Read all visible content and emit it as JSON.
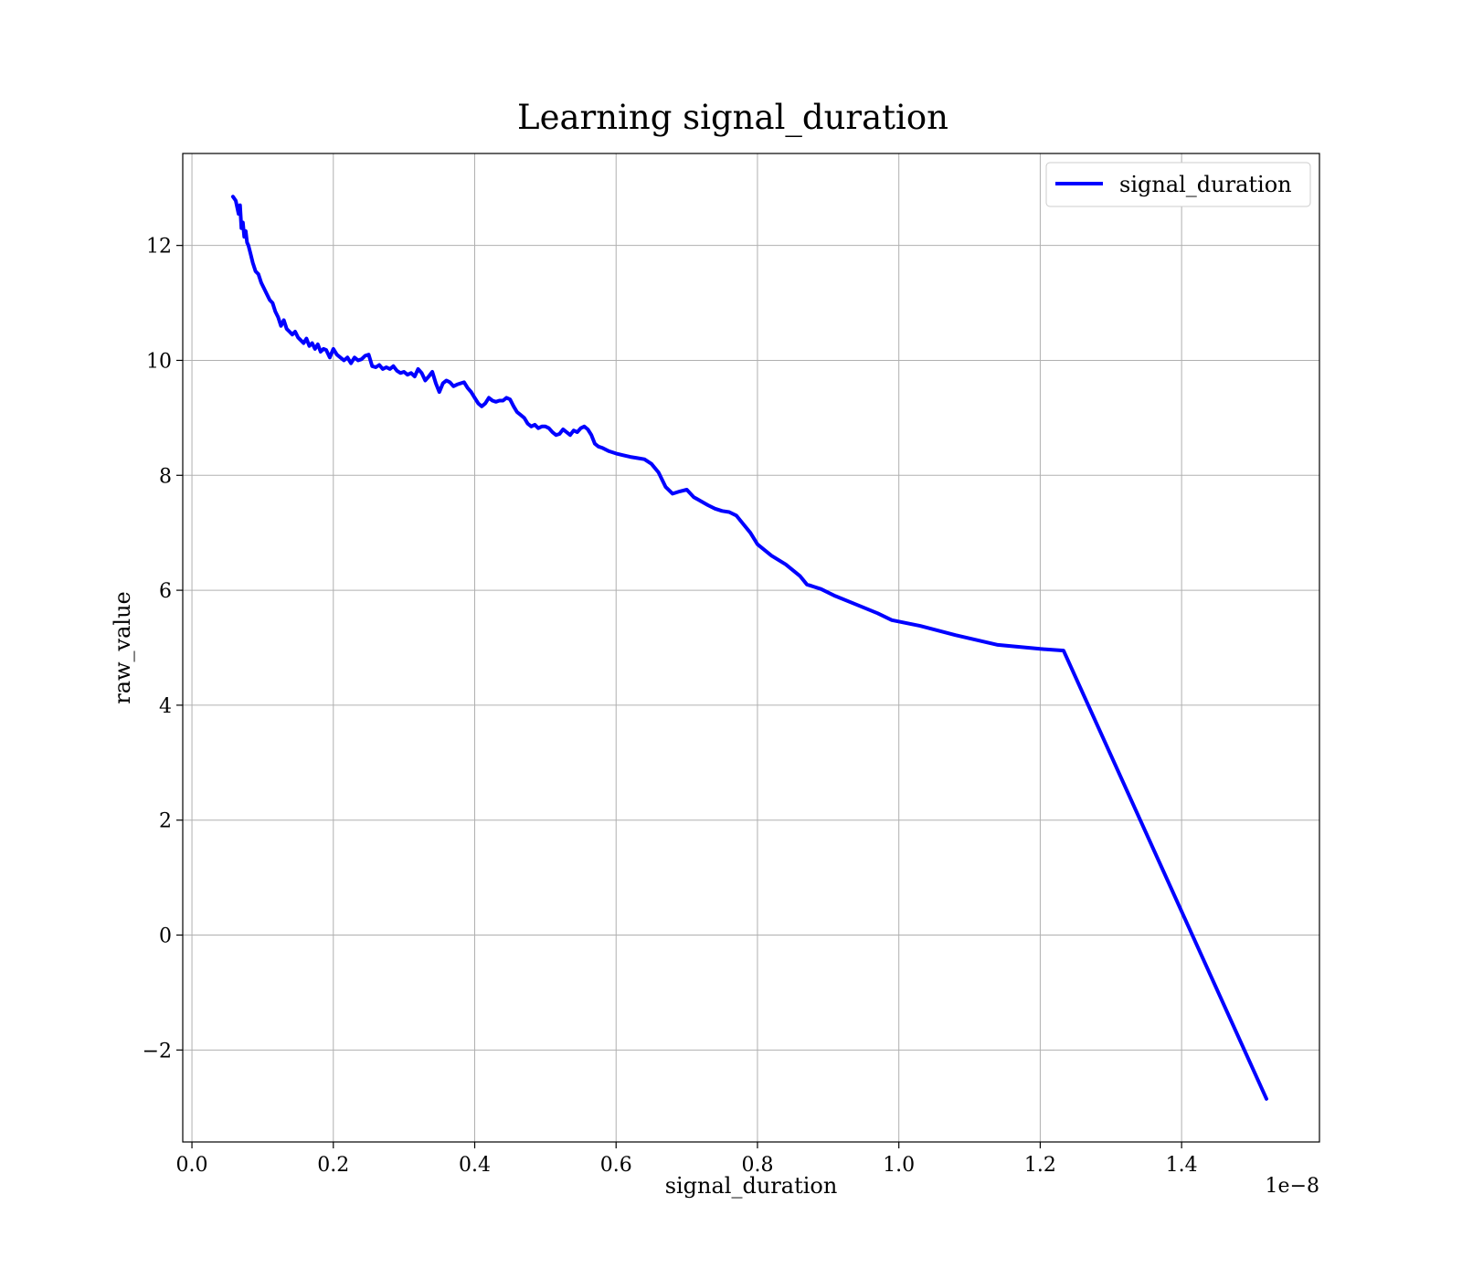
{
  "chart_data": {
    "type": "line",
    "title": "Learning signal_duration",
    "xlabel": "signal_duration",
    "ylabel": "raw_value",
    "x_offset_label": "1e−8",
    "xlim": [
      -0.013,
      1.595
    ],
    "ylim": [
      -3.6,
      13.6
    ],
    "x_ticks": [
      0.0,
      0.2,
      0.4,
      0.6,
      0.8,
      1.0,
      1.2,
      1.4
    ],
    "x_tick_labels": [
      "0.0",
      "0.2",
      "0.4",
      "0.6",
      "0.8",
      "1.0",
      "1.2",
      "1.4"
    ],
    "y_ticks": [
      -2,
      0,
      2,
      4,
      6,
      8,
      10,
      12
    ],
    "y_tick_labels": [
      "−2",
      "0",
      "2",
      "4",
      "6",
      "8",
      "10",
      "12"
    ],
    "grid": true,
    "legend_position": "top-right",
    "series": [
      {
        "name": "signal_duration",
        "color": "#0000ff",
        "x": [
          0.058,
          0.062,
          0.066,
          0.068,
          0.07,
          0.072,
          0.074,
          0.076,
          0.078,
          0.08,
          0.083,
          0.086,
          0.09,
          0.094,
          0.098,
          0.102,
          0.106,
          0.11,
          0.114,
          0.118,
          0.122,
          0.126,
          0.13,
          0.134,
          0.138,
          0.142,
          0.146,
          0.15,
          0.154,
          0.158,
          0.162,
          0.166,
          0.17,
          0.174,
          0.178,
          0.182,
          0.186,
          0.19,
          0.195,
          0.2,
          0.205,
          0.21,
          0.215,
          0.22,
          0.225,
          0.23,
          0.235,
          0.24,
          0.245,
          0.25,
          0.255,
          0.26,
          0.265,
          0.27,
          0.275,
          0.28,
          0.285,
          0.29,
          0.295,
          0.3,
          0.305,
          0.31,
          0.315,
          0.32,
          0.325,
          0.33,
          0.335,
          0.34,
          0.345,
          0.35,
          0.355,
          0.36,
          0.365,
          0.37,
          0.375,
          0.38,
          0.385,
          0.39,
          0.395,
          0.4,
          0.405,
          0.41,
          0.415,
          0.42,
          0.425,
          0.43,
          0.435,
          0.44,
          0.445,
          0.45,
          0.455,
          0.46,
          0.465,
          0.47,
          0.475,
          0.48,
          0.485,
          0.49,
          0.495,
          0.5,
          0.505,
          0.51,
          0.515,
          0.52,
          0.525,
          0.53,
          0.535,
          0.54,
          0.545,
          0.55,
          0.555,
          0.56,
          0.565,
          0.57,
          0.575,
          0.58,
          0.59,
          0.6,
          0.61,
          0.62,
          0.63,
          0.64,
          0.65,
          0.66,
          0.67,
          0.68,
          0.69,
          0.7,
          0.71,
          0.72,
          0.73,
          0.74,
          0.75,
          0.76,
          0.77,
          0.78,
          0.79,
          0.8,
          0.82,
          0.84,
          0.86,
          0.87,
          0.89,
          0.91,
          0.94,
          0.97,
          0.99,
          1.03,
          1.08,
          1.14,
          1.2,
          1.233,
          1.52
        ],
        "values": [
          12.85,
          12.78,
          12.55,
          12.7,
          12.3,
          12.4,
          12.15,
          12.25,
          12.05,
          12.0,
          11.85,
          11.7,
          11.55,
          11.5,
          11.35,
          11.25,
          11.15,
          11.05,
          11.0,
          10.85,
          10.75,
          10.6,
          10.7,
          10.55,
          10.5,
          10.45,
          10.5,
          10.4,
          10.35,
          10.3,
          10.38,
          10.25,
          10.3,
          10.2,
          10.28,
          10.15,
          10.2,
          10.18,
          10.05,
          10.2,
          10.1,
          10.05,
          10.0,
          10.05,
          9.95,
          10.05,
          10.0,
          10.02,
          10.08,
          10.1,
          9.9,
          9.88,
          9.92,
          9.85,
          9.88,
          9.85,
          9.9,
          9.82,
          9.78,
          9.8,
          9.75,
          9.78,
          9.72,
          9.85,
          9.78,
          9.65,
          9.72,
          9.8,
          9.6,
          9.45,
          9.6,
          9.65,
          9.62,
          9.55,
          9.58,
          9.6,
          9.62,
          9.52,
          9.45,
          9.35,
          9.25,
          9.2,
          9.25,
          9.35,
          9.3,
          9.28,
          9.3,
          9.3,
          9.35,
          9.32,
          9.2,
          9.1,
          9.05,
          9.0,
          8.9,
          8.85,
          8.88,
          8.82,
          8.85,
          8.85,
          8.82,
          8.75,
          8.7,
          8.72,
          8.8,
          8.75,
          8.7,
          8.78,
          8.75,
          8.82,
          8.85,
          8.8,
          8.7,
          8.55,
          8.5,
          8.48,
          8.42,
          8.38,
          8.35,
          8.32,
          8.3,
          8.28,
          8.2,
          8.05,
          7.8,
          7.68,
          7.72,
          7.75,
          7.62,
          7.55,
          7.48,
          7.42,
          7.38,
          7.36,
          7.3,
          7.15,
          7.0,
          6.8,
          6.6,
          6.45,
          6.25,
          6.1,
          6.02,
          5.9,
          5.75,
          5.6,
          5.48,
          5.38,
          5.22,
          5.05,
          4.98,
          4.95,
          -2.85
        ]
      }
    ]
  }
}
